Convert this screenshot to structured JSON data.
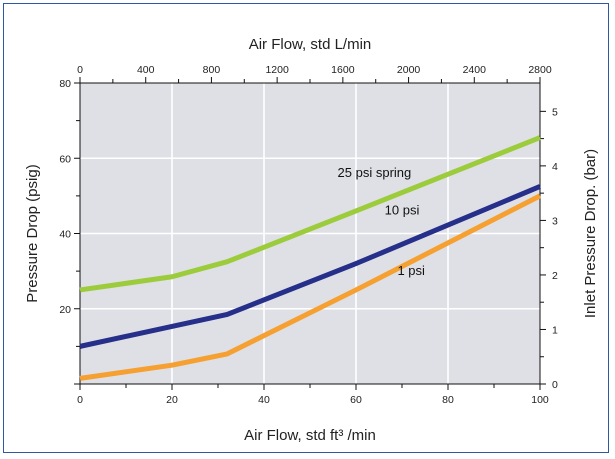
{
  "chart_data": {
    "type": "line",
    "xlabel": "Air Flow, std ft³ /min",
    "x2label": "Air Flow, std L/min",
    "ylabel": "Pressure Drop (psig)",
    "y2label": "Inlet Pressure Drop. (bar)",
    "xlim": [
      0,
      100
    ],
    "ylim": [
      0,
      80
    ],
    "x2lim": [
      0,
      2800
    ],
    "y2lim": [
      0,
      5.52
    ],
    "xticks": [
      0,
      20,
      40,
      60,
      80,
      100
    ],
    "yticks": [
      20,
      40,
      60,
      80
    ],
    "x2ticks": [
      0,
      400,
      800,
      1200,
      1600,
      2000,
      2400,
      2800
    ],
    "y2ticks": [
      0,
      1,
      2,
      3,
      4,
      5
    ],
    "grid": true,
    "series": [
      {
        "name": "25 psi spring",
        "color": "#9ccc3c",
        "x": [
          0,
          20,
          32,
          60,
          100
        ],
        "y": [
          25,
          28.5,
          32.5,
          46,
          65.5
        ]
      },
      {
        "name": "10 psi",
        "color": "#262f8a",
        "x": [
          0,
          32,
          60,
          100
        ],
        "y": [
          10,
          18.5,
          32,
          52.5
        ]
      },
      {
        "name": "1 psi",
        "color": "#f5a030",
        "x": [
          0,
          20,
          32,
          60,
          100
        ],
        "y": [
          1.5,
          5,
          8,
          25,
          50
        ]
      }
    ]
  }
}
